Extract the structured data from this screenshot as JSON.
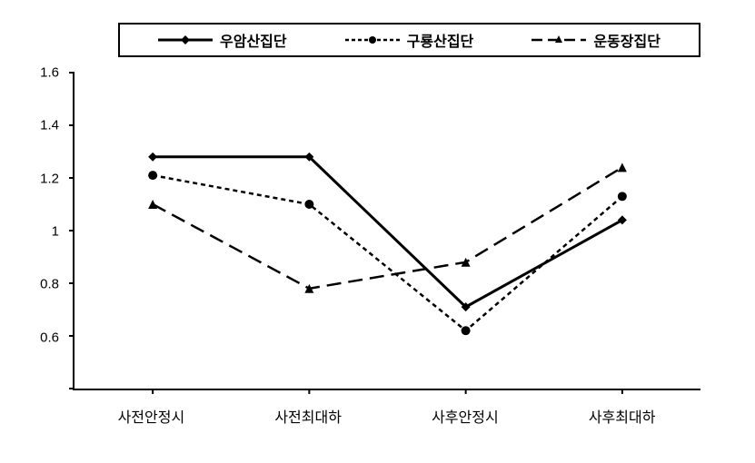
{
  "chart": {
    "type": "line",
    "background_color": "#ffffff",
    "axis_color": "#000000",
    "x_categories": [
      "사전안정시",
      "사전최대하",
      "사후안정시",
      "사후최대하"
    ],
    "y_axis": {
      "min": 0.4,
      "max": 1.6,
      "tick_step": 0.2,
      "ticks": [
        0.4,
        0.6,
        0.8,
        1.0,
        1.2,
        1.4,
        1.6
      ],
      "tick_labels": [
        "",
        "0.6",
        "0.8",
        "1",
        "1.2",
        "1.4",
        "1.6"
      ]
    },
    "series": [
      {
        "name": "우암산집단",
        "line_style": "solid",
        "line_width": 3,
        "color": "#000000",
        "marker": "diamond",
        "marker_size": 5,
        "values": [
          1.28,
          1.28,
          0.71,
          1.04
        ]
      },
      {
        "name": "구룡산집단",
        "line_style": "short-dash",
        "line_width": 2.5,
        "color": "#000000",
        "marker": "circle",
        "marker_size": 5,
        "values": [
          1.21,
          1.1,
          0.62,
          1.13
        ]
      },
      {
        "name": "운동장집단",
        "line_style": "long-dash",
        "line_width": 2.5,
        "color": "#000000",
        "marker": "triangle",
        "marker_size": 5,
        "values": [
          1.1,
          0.78,
          0.88,
          1.24
        ]
      }
    ],
    "label_fontsize": 16,
    "tick_fontsize": 15,
    "legend_position": "top",
    "legend_border_width": 2
  }
}
